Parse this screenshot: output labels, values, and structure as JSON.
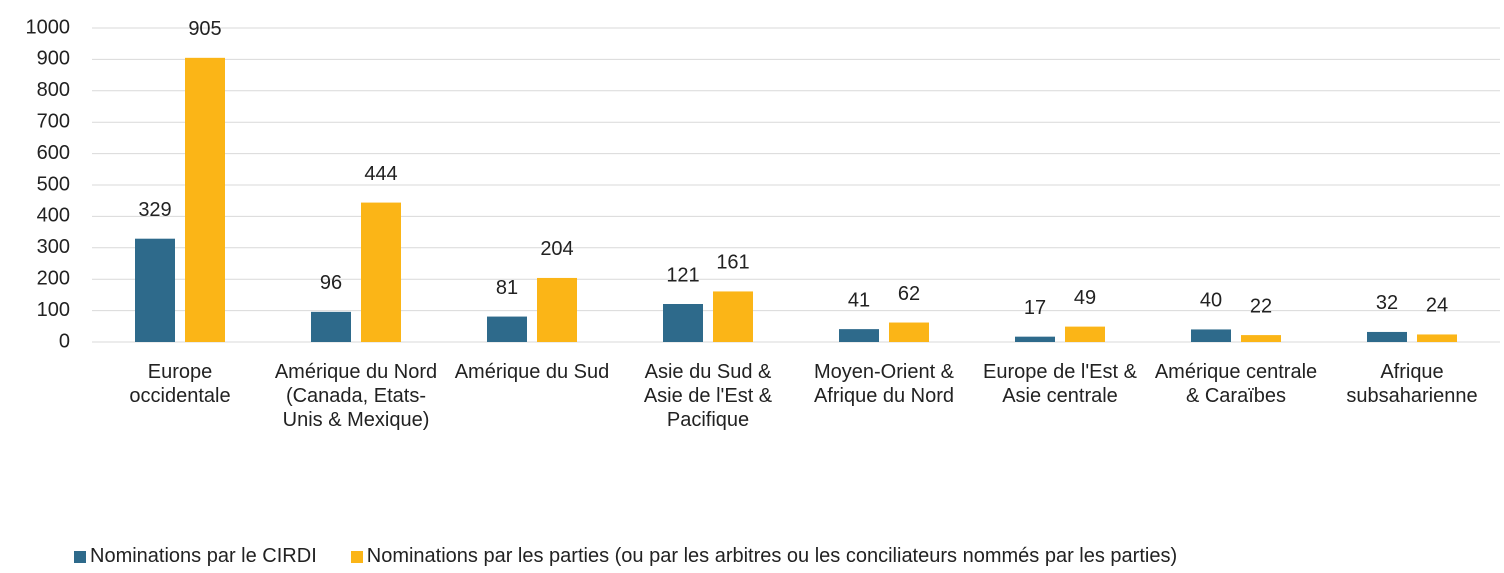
{
  "chart_data": {
    "type": "bar",
    "categories": [
      "Europe occidentale",
      "Amérique du Nord (Canada, Etats-Unis & Mexique)",
      "Amérique du Sud",
      "Asie du Sud & Asie de l'Est & Pacifique",
      "Moyen-Orient & Afrique du Nord",
      "Europe de l'Est &  Asie centrale",
      "Amérique centrale & Caraïbes",
      "Afrique subsaharienne"
    ],
    "series": [
      {
        "name": "Nominations par le CIRDI",
        "color": "#2e6a8b",
        "values": [
          329,
          96,
          81,
          121,
          41,
          17,
          40,
          32
        ]
      },
      {
        "name": "Nominations par les parties (ou par les arbitres ou les conciliateurs nommés par les parties)",
        "color": "#fbb517",
        "values": [
          905,
          444,
          204,
          161,
          62,
          49,
          22,
          24
        ]
      }
    ],
    "ylim": [
      0,
      1000
    ],
    "yticks": [
      0,
      100,
      200,
      300,
      400,
      500,
      600,
      700,
      800,
      900,
      1000
    ],
    "grid": true,
    "legend": "bottom"
  }
}
